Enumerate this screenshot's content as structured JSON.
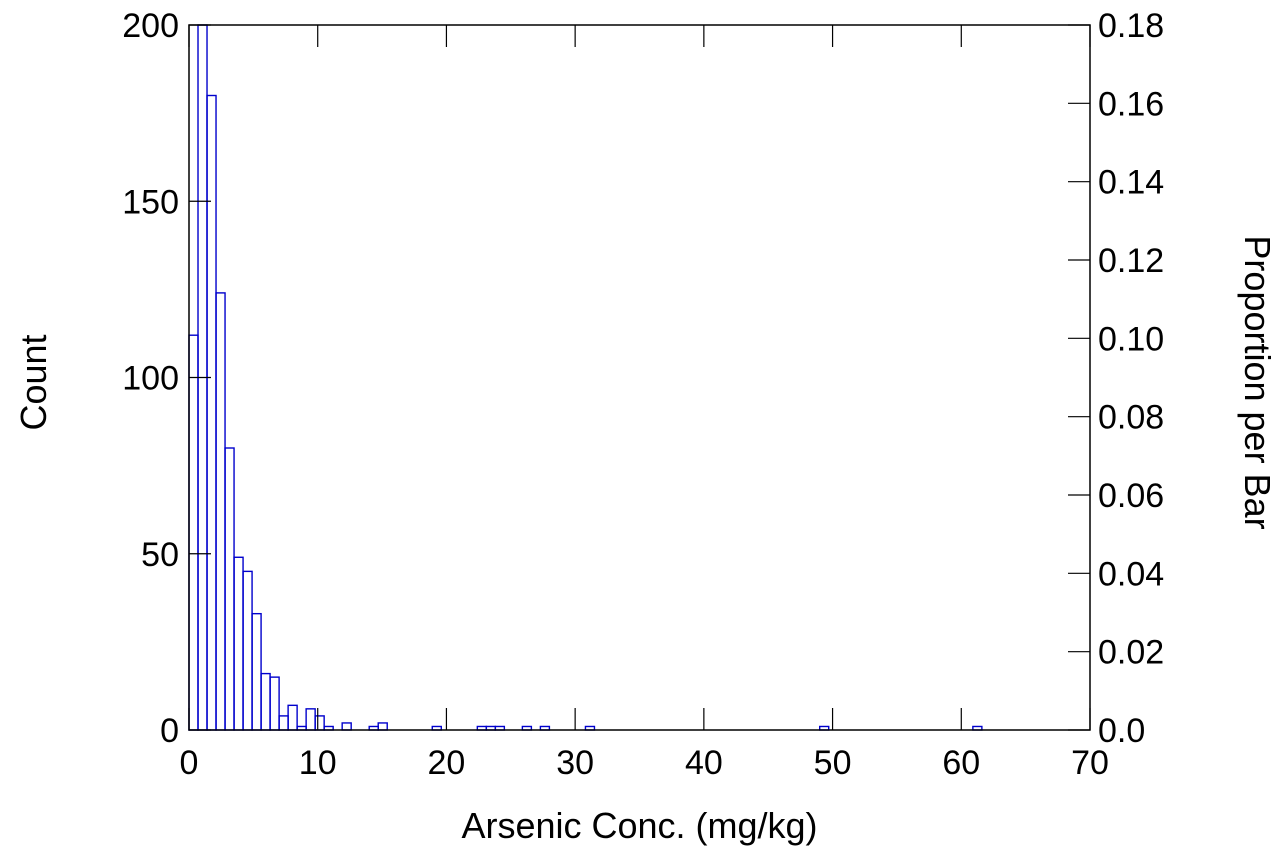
{
  "chart_data": {
    "type": "bar",
    "subtype": "histogram",
    "title": "",
    "xlabel": "Arsenic Conc. (mg/kg)",
    "ylabel": "Count",
    "ylabel_right": "Proportion per Bar",
    "xlim": [
      0,
      70
    ],
    "ylim": [
      0,
      200
    ],
    "ylim_right": [
      0,
      0.18
    ],
    "x_ticks": [
      0,
      10,
      20,
      30,
      40,
      50,
      60,
      70
    ],
    "y_ticks": [
      0,
      50,
      100,
      150,
      200
    ],
    "y_ticks_right": [
      "0.0",
      "0.02",
      "0.04",
      "0.06",
      "0.08",
      "0.10",
      "0.12",
      "0.14",
      "0.16",
      "0.18"
    ],
    "grid": false,
    "bar_color": "#0000cc",
    "bin_width": 0.7,
    "bins": [
      {
        "x0": 0.0,
        "count": 112
      },
      {
        "x0": 0.7,
        "count": 200
      },
      {
        "x0": 1.4,
        "count": 180
      },
      {
        "x0": 2.1,
        "count": 124
      },
      {
        "x0": 2.8,
        "count": 80
      },
      {
        "x0": 3.5,
        "count": 49
      },
      {
        "x0": 4.2,
        "count": 45
      },
      {
        "x0": 4.9,
        "count": 33
      },
      {
        "x0": 5.6,
        "count": 16
      },
      {
        "x0": 6.3,
        "count": 15
      },
      {
        "x0": 7.0,
        "count": 4
      },
      {
        "x0": 7.7,
        "count": 7
      },
      {
        "x0": 8.4,
        "count": 1
      },
      {
        "x0": 9.1,
        "count": 6
      },
      {
        "x0": 9.8,
        "count": 4
      },
      {
        "x0": 10.5,
        "count": 1
      },
      {
        "x0": 11.9,
        "count": 2
      },
      {
        "x0": 14.0,
        "count": 1
      },
      {
        "x0": 14.7,
        "count": 2
      },
      {
        "x0": 18.9,
        "count": 1
      },
      {
        "x0": 22.4,
        "count": 1
      },
      {
        "x0": 23.1,
        "count": 1
      },
      {
        "x0": 23.8,
        "count": 1
      },
      {
        "x0": 25.9,
        "count": 1
      },
      {
        "x0": 27.3,
        "count": 1
      },
      {
        "x0": 30.8,
        "count": 1
      },
      {
        "x0": 49.0,
        "count": 1
      },
      {
        "x0": 60.9,
        "count": 1
      }
    ]
  }
}
